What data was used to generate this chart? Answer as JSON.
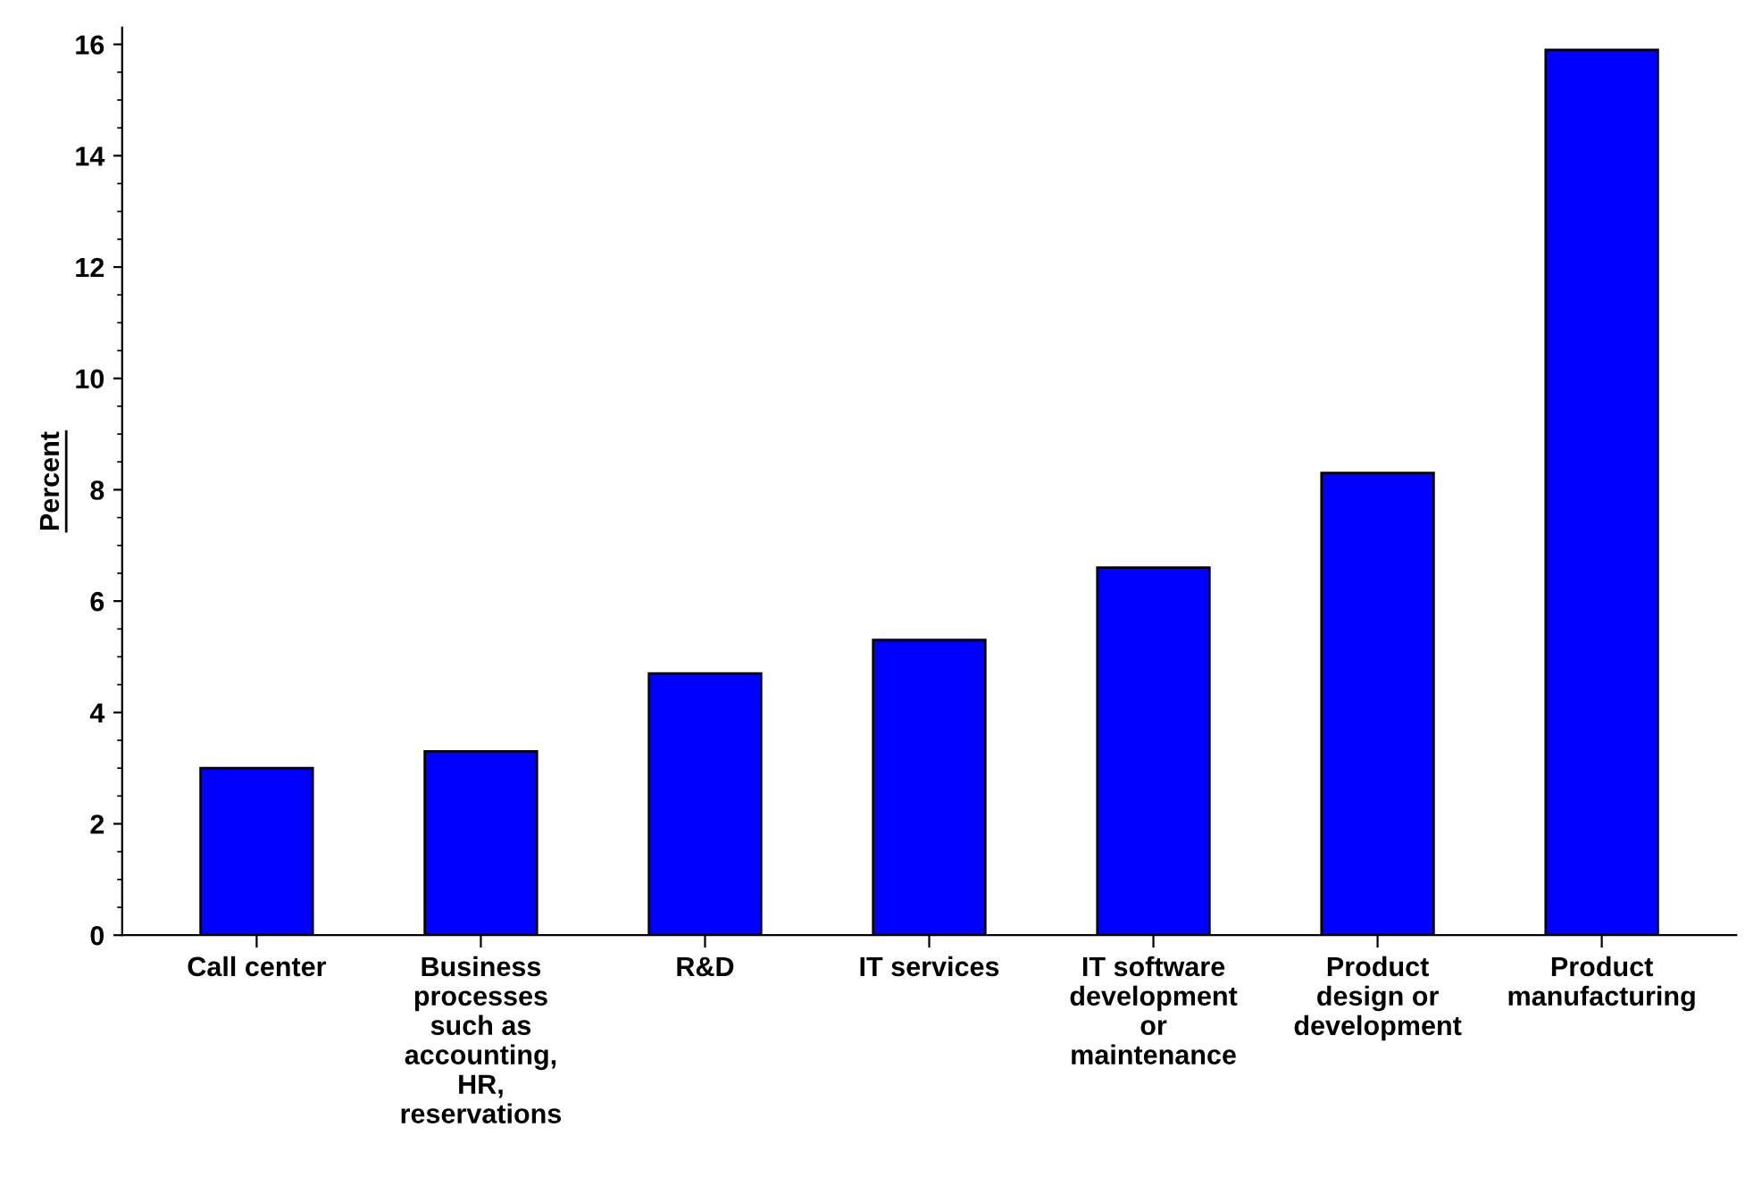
{
  "chart_data": {
    "type": "bar",
    "ylabel": "Percent",
    "categories": [
      "Call center",
      "Business\nprocesses\nsuch as\naccounting,\nHR,\nreservations",
      "R&D",
      "IT services",
      "IT software\ndevelopment\nor\nmaintenance",
      "Product\ndesign or\ndevelopment",
      "Product\nmanufacturing"
    ],
    "values": [
      3.0,
      3.3,
      4.7,
      5.3,
      6.6,
      8.3,
      15.9
    ],
    "color": "#0000ff",
    "ylim": [
      0,
      16.3
    ],
    "yticks": [
      0,
      2,
      4,
      6,
      8,
      10,
      12,
      14,
      16
    ],
    "grid": false
  }
}
